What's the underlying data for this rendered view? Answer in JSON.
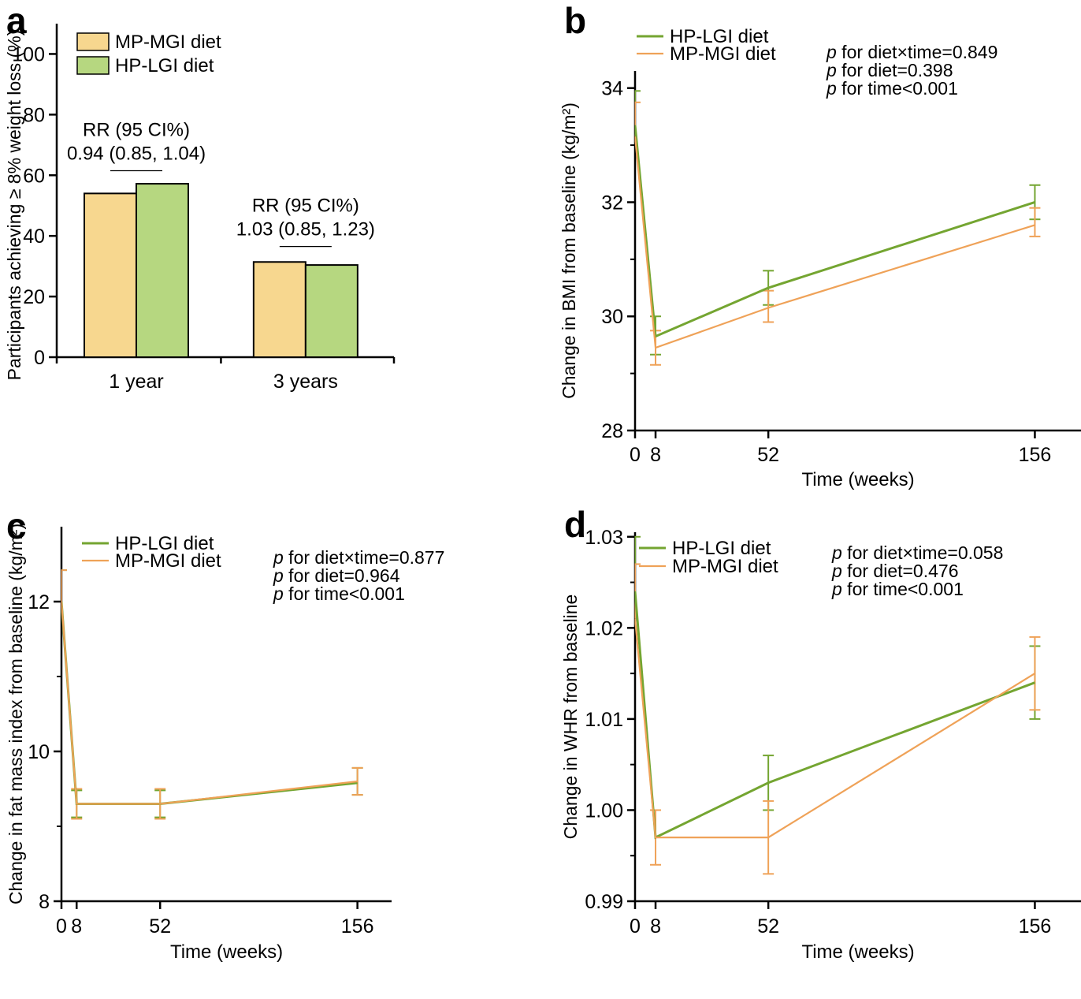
{
  "figure": {
    "background": "#ffffff",
    "axis_color": "#000000",
    "colors": {
      "hp_lgi_line": "#74A531",
      "mp_mgi_line": "#EFA258",
      "mp_mgi_bar_fill": "#F7D78F",
      "hp_lgi_bar_fill": "#B6D780"
    }
  },
  "chart_data": [
    {
      "id": "a",
      "panel_label": "a",
      "type": "bar",
      "ylabel": "Participants achieving ≥ 8% weight loss (%)",
      "ylim": [
        0,
        110
      ],
      "yticks": [
        0,
        20,
        40,
        60,
        80,
        100
      ],
      "ytick_labels": [
        "0",
        "20",
        "40",
        "60",
        "80",
        "100"
      ],
      "categories": [
        "1 year",
        "3 years"
      ],
      "series": [
        {
          "name": "MP-MGI diet",
          "color": "#F7D78F",
          "values": [
            54,
            31.4
          ]
        },
        {
          "name": "HP-LGI diet",
          "color": "#B6D780",
          "values": [
            57.2,
            30.4
          ]
        }
      ],
      "annotations": [
        {
          "group": 0,
          "bracket_y": 61.5,
          "lines": [
            "RR (95 CI%)",
            "0.94 (0.85, 1.04)"
          ]
        },
        {
          "group": 1,
          "bracket_y": 36.5,
          "lines": [
            "RR (95 CI%)",
            "1.03 (0.85, 1.23)"
          ]
        }
      ],
      "legend_position": "top-left",
      "grid": false
    },
    {
      "id": "b",
      "panel_label": "b",
      "type": "line",
      "xlabel": "Time (weeks)",
      "ylabel": "Change in BMI from baseline (kg/m²)",
      "xlim": [
        0,
        174
      ],
      "ylim": [
        28,
        34.3
      ],
      "xticks": [
        0,
        8,
        52,
        156
      ],
      "xtick_labels": [
        "0",
        "8",
        "52",
        "156"
      ],
      "ytick_values": [
        28,
        30,
        32,
        34
      ],
      "ytick_labels": [
        "28",
        "30",
        "32",
        "34"
      ],
      "yminor": [
        29,
        31,
        33
      ],
      "series": [
        {
          "name": "HP-LGI diet",
          "color": "#74A531",
          "points": [
            {
              "x": 0,
              "y": 33.35,
              "hi": 33.95
            },
            {
              "x": 8,
              "y": 29.65,
              "lo": 29.33,
              "hi": 30.0
            },
            {
              "x": 52,
              "y": 30.5,
              "lo": 30.2,
              "hi": 30.8
            },
            {
              "x": 156,
              "y": 32.0,
              "lo": 31.7,
              "hi": 32.3
            }
          ]
        },
        {
          "name": "MP-MGI diet",
          "color": "#EFA258",
          "points": [
            {
              "x": 0,
              "y": 33.15,
              "hi": 33.75
            },
            {
              "x": 8,
              "y": 29.45,
              "lo": 29.15,
              "hi": 29.75
            },
            {
              "x": 52,
              "y": 30.15,
              "lo": 29.9,
              "hi": 30.45
            },
            {
              "x": 156,
              "y": 31.6,
              "lo": 31.4,
              "hi": 31.9
            }
          ]
        }
      ],
      "p_values": [
        "p for diet×time=0.849",
        "p for diet=0.398",
        "p for time<0.001"
      ],
      "legend_position": "top-left",
      "grid": false
    },
    {
      "id": "c",
      "panel_label": "c",
      "type": "line",
      "xlabel": "Time (weeks)",
      "ylabel": "Change in fat mass index from baseline (kg/m²)",
      "xlim": [
        0,
        174
      ],
      "ylim": [
        8,
        13
      ],
      "xticks": [
        0,
        8,
        52,
        156
      ],
      "xtick_labels": [
        "0",
        "8",
        "52",
        "156"
      ],
      "ytick_values": [
        8,
        10,
        12
      ],
      "ytick_labels": [
        "8",
        "10",
        "12"
      ],
      "yminor": [
        9,
        11
      ],
      "series": [
        {
          "name": "HP-LGI diet",
          "color": "#74A531",
          "points": [
            {
              "x": 0,
              "y": 12.0,
              "hi": 12.42
            },
            {
              "x": 8,
              "y": 9.3,
              "lo": 9.12,
              "hi": 9.48
            },
            {
              "x": 52,
              "y": 9.3,
              "lo": 9.12,
              "hi": 9.48
            },
            {
              "x": 156,
              "y": 9.58,
              "lo": 9.42,
              "hi": 9.78
            }
          ]
        },
        {
          "name": "MP-MGI diet",
          "color": "#EFA258",
          "points": [
            {
              "x": 0,
              "y": 12.0,
              "hi": 12.42
            },
            {
              "x": 8,
              "y": 9.3,
              "lo": 9.1,
              "hi": 9.5
            },
            {
              "x": 52,
              "y": 9.3,
              "lo": 9.1,
              "hi": 9.5
            },
            {
              "x": 156,
              "y": 9.6,
              "lo": 9.42,
              "hi": 9.78
            }
          ]
        }
      ],
      "p_values": [
        "p for diet×time=0.877",
        "p for diet=0.964",
        "p for time<0.001"
      ],
      "legend_position": "top-left",
      "grid": false
    },
    {
      "id": "d",
      "panel_label": "d",
      "type": "line",
      "xlabel": "Time (weeks)",
      "ylabel": "Change in WHR from baseline",
      "xlim": [
        0,
        174
      ],
      "ylim": [
        0.99,
        1.0305
      ],
      "xticks": [
        0,
        8,
        52,
        156
      ],
      "xtick_labels": [
        "0",
        "8",
        "52",
        "156"
      ],
      "ytick_values": [
        0.99,
        1.0,
        1.01,
        1.02,
        1.03
      ],
      "ytick_labels": [
        "0.99",
        "1.00",
        "1.01",
        "1.02",
        "1.03"
      ],
      "yminor": [
        0.995,
        1.005,
        1.015,
        1.025
      ],
      "series": [
        {
          "name": "HP-LGI diet",
          "color": "#74A531",
          "points": [
            {
              "x": 0,
              "y": 1.024,
              "hi": 1.03
            },
            {
              "x": 8,
              "y": 0.997
            },
            {
              "x": 52,
              "y": 1.003,
              "lo": 1.0,
              "hi": 1.006
            },
            {
              "x": 156,
              "y": 1.014,
              "lo": 1.01,
              "hi": 1.018
            }
          ]
        },
        {
          "name": "MP-MGI diet",
          "color": "#EFA258",
          "points": [
            {
              "x": 0,
              "y": 1.021,
              "hi": 1.027
            },
            {
              "x": 8,
              "y": 0.997,
              "lo": 0.994,
              "hi": 1.0
            },
            {
              "x": 52,
              "y": 0.997,
              "lo": 0.993,
              "hi": 1.001
            },
            {
              "x": 156,
              "y": 1.015,
              "lo": 1.011,
              "hi": 1.019
            }
          ]
        }
      ],
      "p_values": [
        "p for diet×time=0.058",
        "p for diet=0.476",
        "p for time<0.001"
      ],
      "legend_position": "top-left",
      "grid": false
    }
  ]
}
